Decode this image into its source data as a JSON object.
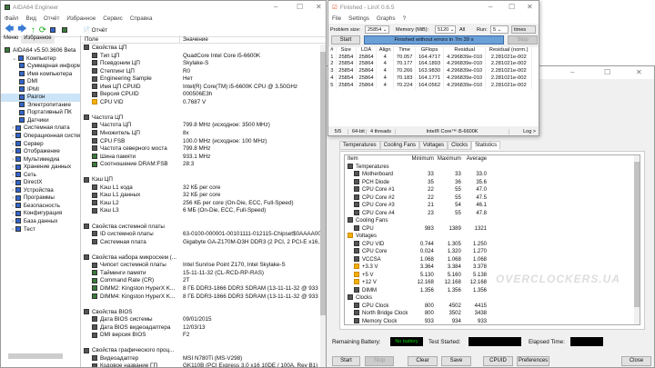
{
  "aida": {
    "title": "AIDA64 Engineer",
    "menu": [
      "Файл",
      "Вид",
      "Отчёт",
      "Избранное",
      "Сервис",
      "Справка"
    ],
    "toolbar_report": "Отчёт",
    "tabs": [
      "Меню",
      "Избранное"
    ],
    "tree": [
      {
        "label": "AIDA64 v5.50.3606 Beta",
        "level": 0
      },
      {
        "label": "Компьютер",
        "level": 1
      },
      {
        "label": "Суммарная информация",
        "level": 2
      },
      {
        "label": "Имя компьютера",
        "level": 2
      },
      {
        "label": "DMI",
        "level": 2
      },
      {
        "label": "IPMI",
        "level": 2
      },
      {
        "label": "Разгон",
        "level": 2,
        "selected": true
      },
      {
        "label": "Электропитание",
        "level": 2
      },
      {
        "label": "Портативный ПК",
        "level": 2
      },
      {
        "label": "Датчики",
        "level": 2
      },
      {
        "label": "Системная плата",
        "level": 1
      },
      {
        "label": "Операционная система",
        "level": 1
      },
      {
        "label": "Сервер",
        "level": 1
      },
      {
        "label": "Отображение",
        "level": 1
      },
      {
        "label": "Мультимедиа",
        "level": 1
      },
      {
        "label": "Хранение данных",
        "level": 1
      },
      {
        "label": "Сеть",
        "level": 1
      },
      {
        "label": "DirectX",
        "level": 1
      },
      {
        "label": "Устройства",
        "level": 1
      },
      {
        "label": "Программы",
        "level": 1
      },
      {
        "label": "Безопасность",
        "level": 1
      },
      {
        "label": "Конфигурация",
        "level": 1
      },
      {
        "label": "База данных",
        "level": 1
      },
      {
        "label": "Тест",
        "level": 1
      }
    ],
    "columns": [
      "Поле",
      "Значение"
    ],
    "rows": [
      {
        "field": "Свойства ЦП",
        "value": "",
        "group": true
      },
      {
        "field": "Тип ЦП",
        "value": "QuadCore Intel Core i5-6600K"
      },
      {
        "field": "Псевдоним ЦП",
        "value": "Skylake-S"
      },
      {
        "field": "Степпинг ЦП",
        "value": "R0"
      },
      {
        "field": "Engineering Sample",
        "value": "Нет"
      },
      {
        "field": "Имя ЦП CPUID",
        "value": "Intel(R) Core(TM) i5-6600K CPU @ 3.50GHz"
      },
      {
        "field": "Версия CPUID",
        "value": "000506E3h"
      },
      {
        "field": "CPU VID",
        "value": "0.7687 V",
        "warn": true
      },
      {
        "field": "",
        "value": ""
      },
      {
        "field": "Частота ЦП",
        "value": "",
        "group": true
      },
      {
        "field": "Частота ЦП",
        "value": "799.8 MHz  (исходное: 3500 MHz)"
      },
      {
        "field": "Множитель ЦП",
        "value": "8x"
      },
      {
        "field": "CPU FSB",
        "value": "100.0 MHz  (исходное: 100 MHz)"
      },
      {
        "field": "Частота северного моста",
        "value": "799.8 MHz"
      },
      {
        "field": "Шина памяти",
        "value": "933.1 MHz",
        "mem": true
      },
      {
        "field": "Соотношение DRAM:FSB",
        "value": "28:3",
        "mem": true
      },
      {
        "field": "",
        "value": ""
      },
      {
        "field": "Кэш ЦП",
        "value": "",
        "group": true
      },
      {
        "field": "Кэш L1 кода",
        "value": "32 КБ per core"
      },
      {
        "field": "Кэш L1 данных",
        "value": "32 КБ per core"
      },
      {
        "field": "Кэш L2",
        "value": "256 КБ per core  (On-Die, ECC, Full-Speed)"
      },
      {
        "field": "Кэш L3",
        "value": "6 МБ  (On-Die, ECC, Full-Speed)"
      },
      {
        "field": "",
        "value": ""
      },
      {
        "field": "Свойства системной платы",
        "value": "",
        "group": true
      },
      {
        "field": "ID системной платы",
        "value": "63-0100-000001-00101111-012115-Chipset$0AAAA000_BIOS DATE: ..."
      },
      {
        "field": "Системная плата",
        "value": "Gigabyte GA-Z170M-D3H DDR3  (2 PCI, 2 PCI-E x16, 1 M.2, 4 DDR3 ..."
      },
      {
        "field": "",
        "value": ""
      },
      {
        "field": "Свойства набора микросхем (...",
        "value": "",
        "group": true
      },
      {
        "field": "Чипсет системной платы",
        "value": "Intel Sunrise Point Z170, Intel Skylake-S"
      },
      {
        "field": "Тайминги памяти",
        "value": "15-11-11-32  (CL-RCD-RP-RAS)",
        "mem": true
      },
      {
        "field": "Command Rate (CR)",
        "value": "2T",
        "mem": true
      },
      {
        "field": "DIMM2: Kingston HyperX K...",
        "value": "8 ГБ DDR3-1866 DDR3 SDRAM  (13-11-11-32 @ 933 МГц)  (12-11-1...",
        "mem": true
      },
      {
        "field": "DIMM4: Kingston HyperX K...",
        "value": "8 ГБ DDR3-1866 DDR3 SDRAM  (13-11-11-32 @ 933 МГц)  (12-11-1...",
        "mem": true
      },
      {
        "field": "",
        "value": ""
      },
      {
        "field": "Свойства BIOS",
        "value": "",
        "group": true
      },
      {
        "field": "Дата BIOS системы",
        "value": "09/01/2015"
      },
      {
        "field": "Дата BIOS видеоадаптера",
        "value": "12/03/13"
      },
      {
        "field": "DMI версия BIOS",
        "value": "F2"
      },
      {
        "field": "",
        "value": ""
      },
      {
        "field": "Свойства графического проц...",
        "value": "",
        "group": true
      },
      {
        "field": "Видеоадаптер",
        "value": "MSI N780Ti (MS-V298)"
      },
      {
        "field": "Кодовое название ГП",
        "value": "GK110B  (PCI Express 3.0 x16 10DE / 100A, Rev B1)"
      }
    ]
  },
  "linx": {
    "title": "Finished - LinX 0.6.5",
    "menu": [
      "File",
      "Settings",
      "Graphs",
      "?"
    ],
    "problem_size_label": "Problem size:",
    "problem_size": "25854",
    "memory_label": "Memory (MiB):",
    "memory": "5120",
    "all_label": "All",
    "run_label": "Run:",
    "run": "5",
    "times": "times",
    "start": "Start",
    "stop": "Stop",
    "progress_text": "Finished without errors in 7m 39 s",
    "progress": 100,
    "columns": [
      "#",
      "Size",
      "LDA",
      "Align",
      "Time",
      "GFlops",
      "Residual",
      "Residual (norm.)"
    ],
    "rows": [
      [
        "1",
        "25854",
        "25864",
        "4",
        "70.057",
        "164.4717",
        "4.296839e-010",
        "2.281021e-002"
      ],
      [
        "2",
        "25854",
        "25864",
        "4",
        "70.177",
        "164.1893",
        "4.296839e-010",
        "2.281021e-002"
      ],
      [
        "3",
        "25854",
        "25864",
        "4",
        "70.266",
        "163.9830",
        "4.296839e-010",
        "2.281021e-002"
      ],
      [
        "4",
        "25854",
        "25864",
        "4",
        "70.183",
        "164.1771",
        "4.296839e-010",
        "2.281021e-002"
      ],
      [
        "5",
        "25854",
        "25864",
        "4",
        "70.224",
        "164.0562",
        "4.296839e-010",
        "2.281021e-002"
      ]
    ],
    "status": [
      "5/5",
      "64-bit",
      "4 threads",
      "Intel® Core™ i5-6600K",
      "Log >"
    ]
  },
  "stability": {
    "tabs": [
      "Temperatures",
      "Cooling Fans",
      "Voltages",
      "Clocks",
      "Statistics"
    ],
    "active_tab": "Statistics",
    "columns": [
      "Item",
      "Minimum",
      "Maximum",
      "Average"
    ],
    "rows": [
      {
        "item": "Temperatures",
        "group": true
      },
      {
        "item": "Motherboard",
        "min": "33",
        "max": "33",
        "avg": "33.0"
      },
      {
        "item": "PCH Diode",
        "min": "35",
        "max": "36",
        "avg": "35.6"
      },
      {
        "item": "CPU Core #1",
        "min": "22",
        "max": "55",
        "avg": "47.0"
      },
      {
        "item": "CPU Core #2",
        "min": "22",
        "max": "55",
        "avg": "47.5"
      },
      {
        "item": "CPU Core #3",
        "min": "21",
        "max": "54",
        "avg": "46.1"
      },
      {
        "item": "CPU Core #4",
        "min": "23",
        "max": "55",
        "avg": "47.8"
      },
      {
        "item": "Cooling Fans",
        "group": true
      },
      {
        "item": "CPU",
        "min": "983",
        "max": "1389",
        "avg": "1321"
      },
      {
        "item": "Voltages",
        "group": true,
        "warn": true
      },
      {
        "item": "CPU VID",
        "min": "0.744",
        "max": "1.305",
        "avg": "1.250"
      },
      {
        "item": "CPU Core",
        "min": "0.024",
        "max": "1.320",
        "avg": "1.270"
      },
      {
        "item": "VCCSA",
        "min": "1.068",
        "max": "1.068",
        "avg": "1.068"
      },
      {
        "item": "+3.3 V",
        "min": "3.364",
        "max": "3.384",
        "avg": "3.378",
        "warn": true
      },
      {
        "item": "+5 V",
        "min": "5.130",
        "max": "5.160",
        "avg": "5.138",
        "warn": true
      },
      {
        "item": "+12 V",
        "min": "12.168",
        "max": "12.168",
        "avg": "12.168",
        "warn": true
      },
      {
        "item": "DIMM",
        "min": "1.356",
        "max": "1.356",
        "avg": "1.356"
      },
      {
        "item": "Clocks",
        "group": true
      },
      {
        "item": "CPU Clock",
        "min": "800",
        "max": "4502",
        "avg": "4415"
      },
      {
        "item": "North Bridge Clock",
        "min": "800",
        "max": "3502",
        "avg": "3438"
      },
      {
        "item": "Memory Clock",
        "min": "933",
        "max": "934",
        "avg": "933"
      }
    ],
    "battery_label": "Remaining Battery:",
    "battery": "No battery",
    "test_started_label": "Test Started:",
    "elapsed_label": "Elapsed Time:",
    "buttons": [
      "Start",
      "Stop",
      "Clear",
      "Save",
      "CPUID",
      "Preferences",
      "Close"
    ]
  },
  "colors": {
    "progress": "#6a9fd8",
    "battery_text": "#00d000",
    "selected": "#cce4f7"
  }
}
